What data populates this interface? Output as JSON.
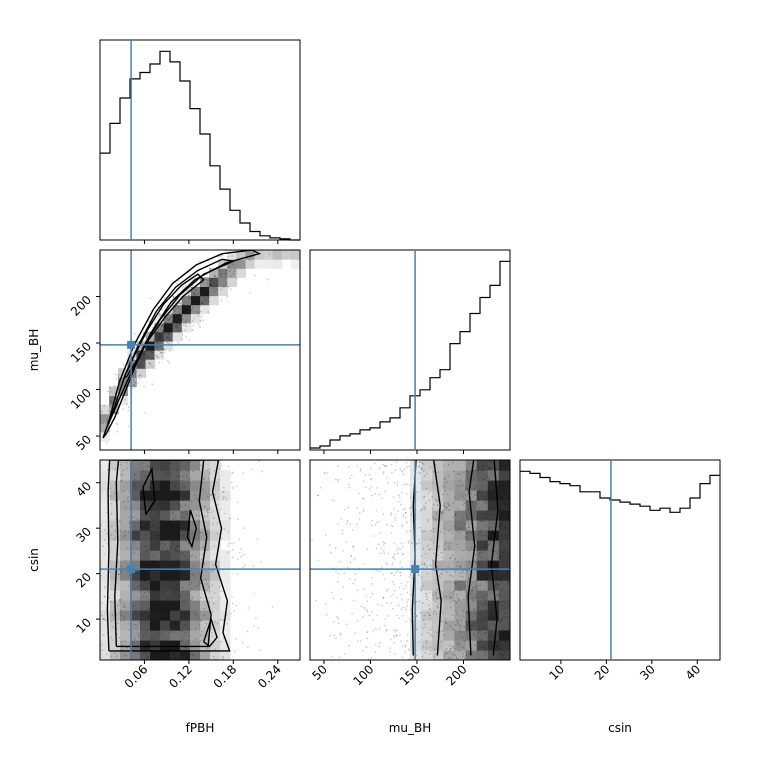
{
  "chart_data": {
    "type": "corner",
    "parameters": [
      "fPBH",
      "mu_BH",
      "csin"
    ],
    "truths": {
      "fPBH": 0.042,
      "mu_BH": 148,
      "csin": 21
    },
    "truth_color": "#4682b4",
    "ranges": {
      "fPBH": [
        0.0,
        0.27
      ],
      "mu_BH": [
        35,
        250
      ],
      "csin": [
        1,
        45
      ]
    },
    "ticks": {
      "fPBH": [
        0.06,
        0.12,
        0.18,
        0.24
      ],
      "fPBH_labels": [
        "0.06",
        "0.12",
        "0.18",
        "0.24"
      ],
      "mu_BH": [
        50,
        100,
        150,
        200
      ],
      "mu_BH_labels": [
        "50",
        "100",
        "150",
        "200"
      ],
      "csin": [
        10,
        20,
        30,
        40
      ],
      "csin_labels": [
        "10",
        "20",
        "30",
        "40"
      ]
    },
    "axis_labels": {
      "fPBH": "fPBH",
      "mu_BH": "mu_BH",
      "csin": "csin"
    },
    "histograms": {
      "fPBH": {
        "bins": [
          0.0,
          0.0135,
          0.027,
          0.0405,
          0.054,
          0.0675,
          0.081,
          0.0945,
          0.108,
          0.1215,
          0.135,
          0.1485,
          0.162,
          0.1755,
          0.189,
          0.2025,
          0.216,
          0.2295,
          0.243,
          0.2565,
          0.27
        ],
        "counts": [
          41,
          55,
          67,
          76,
          79,
          83,
          89,
          84,
          75,
          62,
          50,
          35,
          24,
          14,
          8,
          4,
          2,
          1,
          0.5,
          0
        ]
      },
      "mu_BH": {
        "bins": [
          35,
          45.75,
          56.5,
          67.25,
          78,
          88.75,
          99.5,
          110.25,
          121,
          131.75,
          142.5,
          153.25,
          164,
          174.75,
          185.5,
          196.25,
          207,
          217.75,
          228.5,
          239.25,
          250
        ],
        "counts": [
          1,
          2,
          5,
          7,
          8,
          10,
          11,
          14,
          16,
          21,
          27,
          30,
          36,
          40,
          53,
          59,
          68,
          76,
          82,
          94
        ]
      },
      "csin": {
        "bins": [
          1,
          3.2,
          5.4,
          7.6,
          9.8,
          12,
          14.2,
          16.4,
          18.6,
          20.8,
          23,
          25.2,
          27.4,
          29.6,
          31.8,
          34,
          36.2,
          38.4,
          40.6,
          42.8,
          45
        ],
        "counts": [
          92,
          91,
          89,
          87,
          86,
          85,
          82,
          82,
          79,
          78,
          77,
          76,
          75,
          73,
          74,
          72,
          74,
          79,
          86,
          90
        ]
      }
    },
    "contours": {
      "fPBH_mu_BH": [
        [
          [
            0.004,
            48
          ],
          [
            0.012,
            66
          ],
          [
            0.026,
            108
          ],
          [
            0.046,
            148
          ],
          [
            0.072,
            186
          ],
          [
            0.098,
            214
          ],
          [
            0.13,
            234
          ],
          [
            0.165,
            246
          ],
          [
            0.205,
            250
          ],
          [
            0.215,
            246
          ],
          [
            0.17,
            236
          ],
          [
            0.128,
            218
          ],
          [
            0.096,
            194
          ],
          [
            0.068,
            160
          ],
          [
            0.048,
            126
          ],
          [
            0.032,
            94
          ],
          [
            0.02,
            70
          ],
          [
            0.008,
            52
          ],
          [
            0.004,
            48
          ]
        ],
        [
          [
            0.01,
            62
          ],
          [
            0.02,
            82
          ],
          [
            0.034,
            116
          ],
          [
            0.052,
            148
          ],
          [
            0.076,
            184
          ],
          [
            0.102,
            210
          ],
          [
            0.132,
            228
          ],
          [
            0.165,
            240
          ],
          [
            0.18,
            238
          ],
          [
            0.14,
            224
          ],
          [
            0.108,
            202
          ],
          [
            0.082,
            176
          ],
          [
            0.06,
            148
          ],
          [
            0.042,
            118
          ],
          [
            0.026,
            90
          ],
          [
            0.012,
            64
          ],
          [
            0.01,
            62
          ]
        ],
        [
          [
            0.032,
            112
          ],
          [
            0.046,
            136
          ],
          [
            0.064,
            164
          ],
          [
            0.086,
            192
          ],
          [
            0.11,
            212
          ],
          [
            0.132,
            224
          ],
          [
            0.14,
            218
          ],
          [
            0.112,
            200
          ],
          [
            0.088,
            178
          ],
          [
            0.066,
            154
          ],
          [
            0.05,
            132
          ],
          [
            0.036,
            114
          ],
          [
            0.032,
            112
          ]
        ]
      ],
      "fPBH_csin": [
        [
          [
            0.012,
            3
          ],
          [
            0.01,
            12
          ],
          [
            0.012,
            25
          ],
          [
            0.011,
            38
          ],
          [
            0.013,
            45
          ],
          [
            0.16,
            45
          ],
          [
            0.152,
            38
          ],
          [
            0.164,
            30
          ],
          [
            0.156,
            22
          ],
          [
            0.172,
            14
          ],
          [
            0.166,
            7
          ],
          [
            0.175,
            3
          ],
          [
            0.012,
            3
          ]
        ],
        [
          [
            0.022,
            4
          ],
          [
            0.02,
            15
          ],
          [
            0.024,
            27
          ],
          [
            0.022,
            40
          ],
          [
            0.025,
            45
          ],
          [
            0.14,
            45
          ],
          [
            0.134,
            36
          ],
          [
            0.144,
            28
          ],
          [
            0.136,
            19
          ],
          [
            0.15,
            11
          ],
          [
            0.146,
            4
          ],
          [
            0.022,
            4
          ]
        ],
        [
          [
            0.062,
            33
          ],
          [
            0.058,
            39
          ],
          [
            0.07,
            43
          ],
          [
            0.074,
            36
          ],
          [
            0.062,
            33
          ]
        ],
        [
          [
            0.118,
            28
          ],
          [
            0.122,
            34
          ],
          [
            0.13,
            30
          ],
          [
            0.124,
            26
          ],
          [
            0.118,
            28
          ]
        ],
        [
          [
            0.14,
            5
          ],
          [
            0.15,
            10
          ],
          [
            0.158,
            6
          ],
          [
            0.148,
            4
          ],
          [
            0.14,
            5
          ]
        ]
      ],
      "mu_BH_csin": [
        [
          [
            146,
            2
          ],
          [
            145,
            12
          ],
          [
            148,
            24
          ],
          [
            146,
            35
          ],
          [
            149,
            45
          ]
        ],
        [
          [
            172,
            2
          ],
          [
            176,
            14
          ],
          [
            170,
            22
          ],
          [
            175,
            35
          ],
          [
            168,
            45
          ]
        ],
        [
          [
            208,
            2
          ],
          [
            205,
            15
          ],
          [
            212,
            26
          ],
          [
            206,
            38
          ],
          [
            211,
            45
          ]
        ],
        [
          [
            232,
            2
          ],
          [
            236,
            10
          ],
          [
            230,
            22
          ],
          [
            237,
            34
          ],
          [
            233,
            45
          ]
        ]
      ]
    }
  }
}
